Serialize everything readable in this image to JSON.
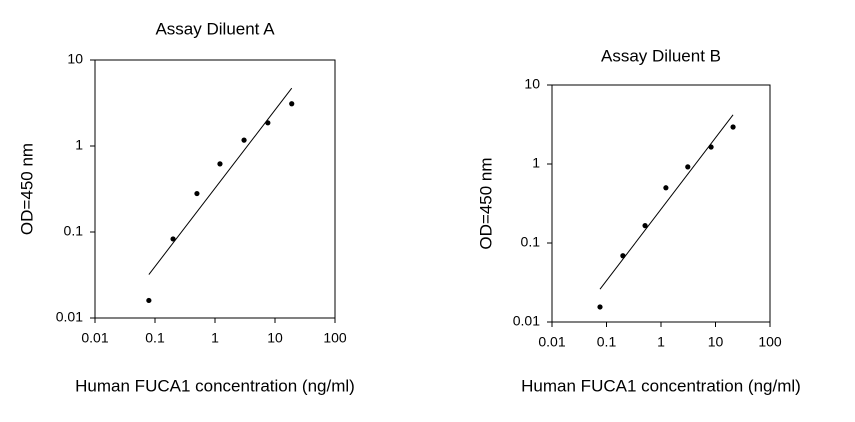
{
  "chart_data": [
    {
      "type": "scatter",
      "title": "Assay Diluent A",
      "x_label": "Human FUCA1 concentration (ng/ml)",
      "y_label": "OD=450 nm",
      "x": [
        0.079,
        0.2,
        0.5,
        1.21,
        3.05,
        7.6,
        19
      ],
      "values": [
        0.016,
        0.083,
        0.28,
        0.62,
        1.17,
        1.86,
        3.1
      ],
      "color": "#000000",
      "fit": {
        "x": [
          0.079,
          19
        ],
        "y": [
          0.032,
          4.7
        ]
      },
      "xlim": [
        0.01,
        100
      ],
      "ylim": [
        0.01,
        10
      ],
      "xticks": [
        0.01,
        0.1,
        1,
        10,
        100
      ],
      "yticks": [
        0.01,
        0.1,
        1,
        10
      ],
      "log_scale": true
    },
    {
      "type": "scatter",
      "title": "Assay Diluent B",
      "x_label": "Human FUCA1 concentration (ng/ml)",
      "y_label": "OD=450 nm",
      "x": [
        0.076,
        0.2,
        0.51,
        1.23,
        3.1,
        8.3,
        21
      ],
      "values": [
        0.0155,
        0.069,
        0.166,
        0.5,
        0.92,
        1.64,
        2.94
      ],
      "color": "#000000",
      "fit": {
        "x": [
          0.076,
          21
        ],
        "y": [
          0.026,
          4.2
        ]
      },
      "xlim": [
        0.01,
        100
      ],
      "ylim": [
        0.01,
        10
      ],
      "xticks": [
        0.01,
        0.1,
        1,
        10,
        100
      ],
      "yticks": [
        0.01,
        0.1,
        1,
        10
      ],
      "log_scale": true
    }
  ]
}
